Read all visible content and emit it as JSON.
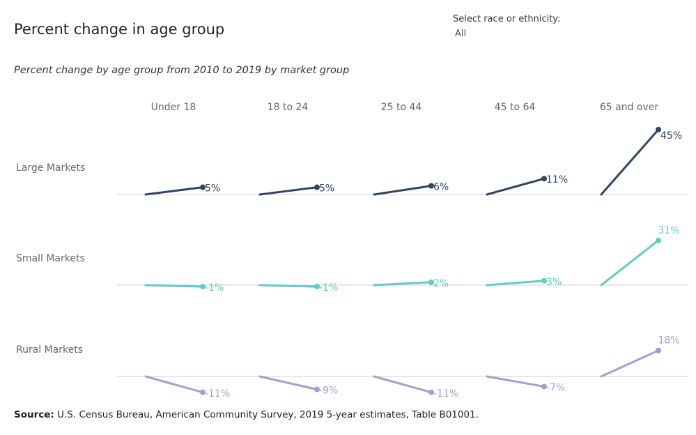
{
  "header": {
    "title": "Percent change in age group",
    "subtitle": "Percent change by age group from 2010 to 2019 by market group"
  },
  "filter": {
    "label": "Select race or ethnicity:",
    "value": "All"
  },
  "footer": {
    "source_label": "Source:",
    "source_text": "U.S. Census Bureau, American Community Survey, 2019 5-year estimates, Table B01001."
  },
  "chart_data": {
    "type": "line",
    "subtitle": "Percent change by age group from 2010 to 2019 by market group",
    "categories": [
      "Under 18",
      "18 to 24",
      "25 to 44",
      "45 to 64",
      "65 and over"
    ],
    "x": [
      "2010",
      "2019"
    ],
    "series": [
      {
        "name": "Large Markets",
        "color": "#2e4564",
        "values": [
          5,
          5,
          6,
          11,
          45
        ],
        "labels": [
          "5%",
          "5%",
          "6%",
          "11%",
          "45%"
        ]
      },
      {
        "name": "Small Markets",
        "color": "#5ecdc4",
        "values": [
          -1,
          -1,
          2,
          3,
          31
        ],
        "labels": [
          "-1%",
          "-1%",
          "2%",
          "3%",
          "31%"
        ]
      },
      {
        "name": "Rural Markets",
        "color": "#a99bd6",
        "values": [
          -11,
          -9,
          -11,
          -7,
          18
        ],
        "labels": [
          "-11%",
          "-9%",
          "-11%",
          "-7%",
          "18%"
        ]
      }
    ],
    "grid": false,
    "legend": "none"
  }
}
